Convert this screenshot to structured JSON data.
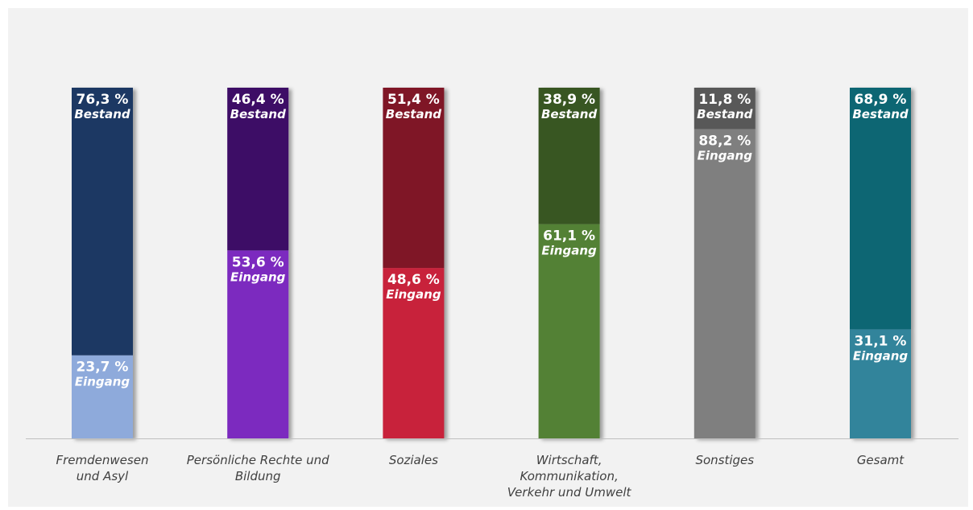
{
  "chart_data": {
    "type": "bar",
    "stacked": true,
    "percent": true,
    "categories": [
      [
        "Fremdenwesen",
        "und Asyl"
      ],
      [
        "Persönliche Rechte und",
        "Bildung"
      ],
      [
        "Soziales"
      ],
      [
        "Wirtschaft,",
        "Kommunikation,",
        "Verkehr und Umwelt"
      ],
      [
        "Sonstiges"
      ],
      [
        "Gesamt"
      ]
    ],
    "series": [
      {
        "name": "Eingang",
        "values": [
          23.7,
          53.6,
          48.6,
          61.1,
          88.2,
          31.1
        ],
        "labels": [
          "23,7 %",
          "53,6 %",
          "48,6 %",
          "61,1 %",
          "88,2 %",
          "31,1 %"
        ],
        "colors": [
          "#8eaadb",
          "#7b2bbf",
          "#c8203a",
          "#538135",
          "#7f7f7f",
          "#31849b"
        ]
      },
      {
        "name": "Bestand",
        "values": [
          76.3,
          46.4,
          51.4,
          38.9,
          11.8,
          68.9
        ],
        "labels": [
          "76,3 %",
          "46,4 %",
          "51,4 %",
          "38,9 %",
          "11,8 %",
          "68,9 %"
        ],
        "colors": [
          "#1f3864",
          "#3c0a66",
          "#7f1727",
          "#375623",
          "#595959",
          "#106673"
        ]
      }
    ],
    "ylim": [
      0,
      100
    ],
    "grid": false,
    "legend": "none"
  }
}
